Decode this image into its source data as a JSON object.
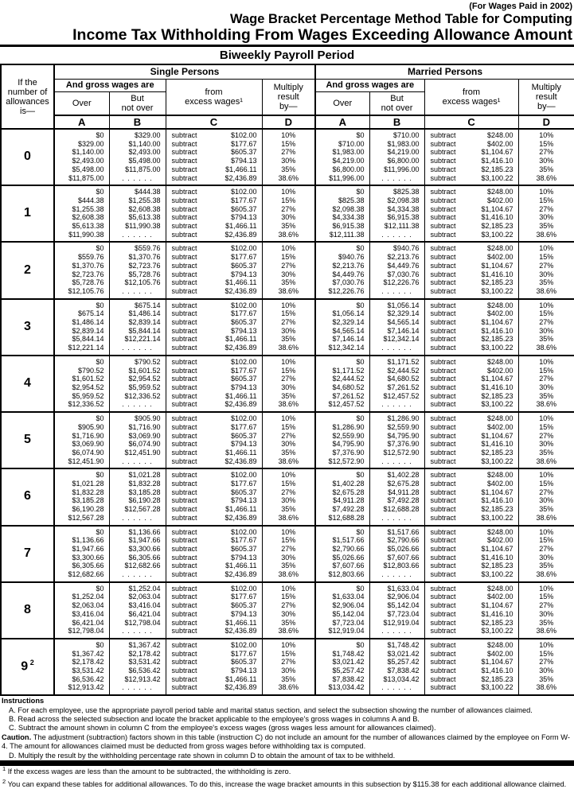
{
  "colors": {
    "ink": "#000000",
    "paper": "#ffffff"
  },
  "page": {
    "for_wages_line": "(For Wages Paid in 2002)",
    "title_line1": "Wage Bracket Percentage Method Table for Computing",
    "title_line2": "Income Tax Withholding From Wages Exceeding Allowance Amount",
    "period_title": "Biweekly Payroll Period"
  },
  "table": {
    "allowances_header": "If the\nnumber of\nallowances\nis—",
    "empty_marker": ". . . . . .",
    "sections": [
      {
        "name": "Single Persons",
        "gross_wages_label": "And gross wages are",
        "over_label": "Over",
        "but_not_over_label": "But\nnot over",
        "subtract_header": "from\nexcess wages¹",
        "multiply_header": "Multiply\nresult\nby—",
        "column_letters": [
          "A",
          "B",
          "C",
          "D"
        ],
        "subtract_word": "subtract",
        "subtract_amounts": [
          "$102.00",
          "$177.67",
          "$605.37",
          "$794.13",
          "$1,466.11",
          "$2,436.89"
        ],
        "rates": [
          "10%",
          "15%",
          "27%",
          "30%",
          "35%",
          "38.6%"
        ]
      },
      {
        "name": "Married Persons",
        "gross_wages_label": "And gross wages are",
        "over_label": "Over",
        "but_not_over_label": "But\nnot over",
        "subtract_header": "from\nexcess wages¹",
        "multiply_header": "Multiply\nresult\nby—",
        "column_letters": [
          "A",
          "B",
          "C",
          "D"
        ],
        "subtract_word": "subtract",
        "subtract_amounts": [
          "$248.00",
          "$402.00",
          "$1,104.67",
          "$1,416.10",
          "$2,185.23",
          "$3,100.22"
        ],
        "rates": [
          "10%",
          "15%",
          "27%",
          "30%",
          "35%",
          "38.6%"
        ]
      }
    ],
    "rows": [
      {
        "n": "0",
        "sup": "",
        "single": {
          "over": [
            "$0",
            "$329.00",
            "$1,140.00",
            "$2,493.00",
            "$5,498.00",
            "$11,875.00"
          ],
          "but_not_over": [
            "$329.00",
            "$1,140.00",
            "$2,493.00",
            "$5,498.00",
            "$11,875.00",
            ". . . . . ."
          ]
        },
        "married": {
          "over": [
            "$0",
            "$710.00",
            "$1,983.00",
            "$4,219.00",
            "$6,800.00",
            "$11,996.00"
          ],
          "but_not_over": [
            "$710.00",
            "$1,983.00",
            "$4,219.00",
            "$6,800.00",
            "$11,996.00",
            ". . . . . ."
          ]
        }
      },
      {
        "n": "1",
        "sup": "",
        "single": {
          "over": [
            "$0",
            "$444.38",
            "$1,255.38",
            "$2,608.38",
            "$5,613.38",
            "$11,990.38"
          ],
          "but_not_over": [
            "$444.38",
            "$1,255.38",
            "$2,608.38",
            "$5,613.38",
            "$11,990.38",
            ". . . . . ."
          ]
        },
        "married": {
          "over": [
            "$0",
            "$825.38",
            "$2,098.38",
            "$4,334.38",
            "$6,915.38",
            "$12,111.38"
          ],
          "but_not_over": [
            "$825.38",
            "$2,098.38",
            "$4,334.38",
            "$6,915.38",
            "$12,111.38",
            ". . . . . ."
          ]
        }
      },
      {
        "n": "2",
        "sup": "",
        "single": {
          "over": [
            "$0",
            "$559.76",
            "$1,370.76",
            "$2,723.76",
            "$5,728.76",
            "$12,105.76"
          ],
          "but_not_over": [
            "$559.76",
            "$1,370.76",
            "$2,723.76",
            "$5,728.76",
            "$12,105.76",
            ". . . . . ."
          ]
        },
        "married": {
          "over": [
            "$0",
            "$940.76",
            "$2,213.76",
            "$4,449.76",
            "$7,030.76",
            "$12,226.76"
          ],
          "but_not_over": [
            "$940.76",
            "$2,213.76",
            "$4,449.76",
            "$7,030.76",
            "$12,226.76",
            ". . . . . ."
          ]
        }
      },
      {
        "n": "3",
        "sup": "",
        "single": {
          "over": [
            "$0",
            "$675.14",
            "$1,486.14",
            "$2,839.14",
            "$5,844.14",
            "$12,221.14"
          ],
          "but_not_over": [
            "$675.14",
            "$1,486.14",
            "$2,839.14",
            "$5,844.14",
            "$12,221.14",
            ". . . . . ."
          ]
        },
        "married": {
          "over": [
            "$0",
            "$1,056.14",
            "$2,329.14",
            "$4,565.14",
            "$7,146.14",
            "$12,342.14"
          ],
          "but_not_over": [
            "$1,056.14",
            "$2,329.14",
            "$4,565.14",
            "$7,146.14",
            "$12,342.14",
            ". . . . . ."
          ]
        }
      },
      {
        "n": "4",
        "sup": "",
        "single": {
          "over": [
            "$0",
            "$790.52",
            "$1,601.52",
            "$2,954.52",
            "$5,959.52",
            "$12,336.52"
          ],
          "but_not_over": [
            "$790.52",
            "$1,601.52",
            "$2,954.52",
            "$5,959.52",
            "$12,336.52",
            ". . . . . ."
          ]
        },
        "married": {
          "over": [
            "$0",
            "$1,171.52",
            "$2,444.52",
            "$4,680.52",
            "$7,261.52",
            "$12,457.52"
          ],
          "but_not_over": [
            "$1,171.52",
            "$2,444.52",
            "$4,680.52",
            "$7,261.52",
            "$12,457.52",
            ". . . . . ."
          ]
        }
      },
      {
        "n": "5",
        "sup": "",
        "single": {
          "over": [
            "$0",
            "$905.90",
            "$1,716.90",
            "$3,069.90",
            "$6,074.90",
            "$12,451.90"
          ],
          "but_not_over": [
            "$905.90",
            "$1,716.90",
            "$3,069.90",
            "$6,074.90",
            "$12,451.90",
            ". . . . . ."
          ]
        },
        "married": {
          "over": [
            "$0",
            "$1,286.90",
            "$2,559.90",
            "$4,795.90",
            "$7,376.90",
            "$12,572.90"
          ],
          "but_not_over": [
            "$1,286.90",
            "$2,559.90",
            "$4,795.90",
            "$7,376.90",
            "$12,572.90",
            ". . . . . ."
          ]
        }
      },
      {
        "n": "6",
        "sup": "",
        "single": {
          "over": [
            "$0",
            "$1,021.28",
            "$1,832.28",
            "$3,185.28",
            "$6,190.28",
            "$12,567.28"
          ],
          "but_not_over": [
            "$1,021.28",
            "$1,832.28",
            "$3,185.28",
            "$6,190.28",
            "$12,567.28",
            ". . . . . ."
          ]
        },
        "married": {
          "over": [
            "$0",
            "$1,402.28",
            "$2,675.28",
            "$4,911.28",
            "$7,492.28",
            "$12,688.28"
          ],
          "but_not_over": [
            "$1,402.28",
            "$2,675.28",
            "$4,911.28",
            "$7,492.28",
            "$12,688.28",
            ". . . . . ."
          ]
        }
      },
      {
        "n": "7",
        "sup": "",
        "single": {
          "over": [
            "$0",
            "$1,136.66",
            "$1,947.66",
            "$3,300.66",
            "$6,305.66",
            "$12,682.66"
          ],
          "but_not_over": [
            "$1,136.66",
            "$1,947.66",
            "$3,300.66",
            "$6,305.66",
            "$12,682.66",
            ". . . . . ."
          ]
        },
        "married": {
          "over": [
            "$0",
            "$1,517.66",
            "$2,790.66",
            "$5,026.66",
            "$7,607.66",
            "$12,803.66"
          ],
          "but_not_over": [
            "$1,517.66",
            "$2,790.66",
            "$5,026.66",
            "$7,607.66",
            "$12,803.66",
            ". . . . . ."
          ]
        }
      },
      {
        "n": "8",
        "sup": "",
        "single": {
          "over": [
            "$0",
            "$1,252.04",
            "$2,063.04",
            "$3,416.04",
            "$6,421.04",
            "$12,798.04"
          ],
          "but_not_over": [
            "$1,252.04",
            "$2,063.04",
            "$3,416.04",
            "$6,421.04",
            "$12,798.04",
            ". . . . . ."
          ]
        },
        "married": {
          "over": [
            "$0",
            "$1,633.04",
            "$2,906.04",
            "$5,142.04",
            "$7,723.04",
            "$12,919.04"
          ],
          "but_not_over": [
            "$1,633.04",
            "$2,906.04",
            "$5,142.04",
            "$7,723.04",
            "$12,919.04",
            ". . . . . ."
          ]
        }
      },
      {
        "n": "9",
        "sup": "2",
        "single": {
          "over": [
            "$0",
            "$1,367.42",
            "$2,178.42",
            "$3,531.42",
            "$6,536.42",
            "$12,913.42"
          ],
          "but_not_over": [
            "$1,367.42",
            "$2,178.42",
            "$3,531.42",
            "$6,536.42",
            "$12,913.42",
            ". . . . . ."
          ]
        },
        "married": {
          "over": [
            "$0",
            "$1,748.42",
            "$3,021.42",
            "$5,257.42",
            "$7,838.42",
            "$13,034.42"
          ],
          "but_not_over": [
            "$1,748.42",
            "$3,021.42",
            "$5,257.42",
            "$7,838.42",
            "$13,034.42",
            ". . . . . ."
          ]
        }
      }
    ]
  },
  "instructions": {
    "heading": "Instructions",
    "paragraphs": [
      {
        "lead": "",
        "indent": true,
        "text": "A. For each employee, use the appropriate payroll period table and marital status section, and select the subsection showing the number of allowances claimed."
      },
      {
        "lead": "",
        "indent": true,
        "text": "B. Read across the selected subsection and locate the bracket applicable to the employee's gross wages in columns A and B."
      },
      {
        "lead": "",
        "indent": true,
        "text": "C. Subtract the amount shown in column C from the employee's excess wages (gross wages less amount for allowances claimed)."
      },
      {
        "lead": "Caution.",
        "indent": false,
        "text": "The adjustment (subtraction) factors shown in this table (instruction C) do not include an amount for the number of allowances claimed by the employee on Form W-4. The amount for allowances claimed must be deducted from gross wages before withholding tax is computed."
      },
      {
        "lead": "",
        "indent": true,
        "text": "D. Multiply the result by the withholding percentage rate shown in column D to obtain the amount of tax to be withheld."
      }
    ]
  },
  "footnotes": [
    {
      "marker": "1",
      "text": "If the excess wages are less than the amount to be subtracted, the withholding is zero."
    },
    {
      "marker": "2",
      "text": "You can expand these tables for additional allowances. To do this, increase the wage bracket amounts in this subsection by $115.38 for each additional allowance claimed."
    }
  ]
}
